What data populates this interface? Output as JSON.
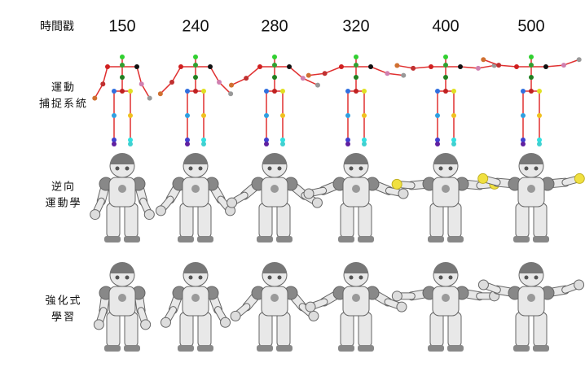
{
  "header": {
    "label": "時間戳",
    "timestamps": [
      150,
      240,
      280,
      320,
      400,
      500
    ]
  },
  "rows": [
    {
      "label_lines": [
        "運動",
        "捕捉系統"
      ]
    },
    {
      "label_lines": [
        "逆向",
        "運動學"
      ]
    },
    {
      "label_lines": [
        "強化式",
        "學習"
      ]
    }
  ]
}
